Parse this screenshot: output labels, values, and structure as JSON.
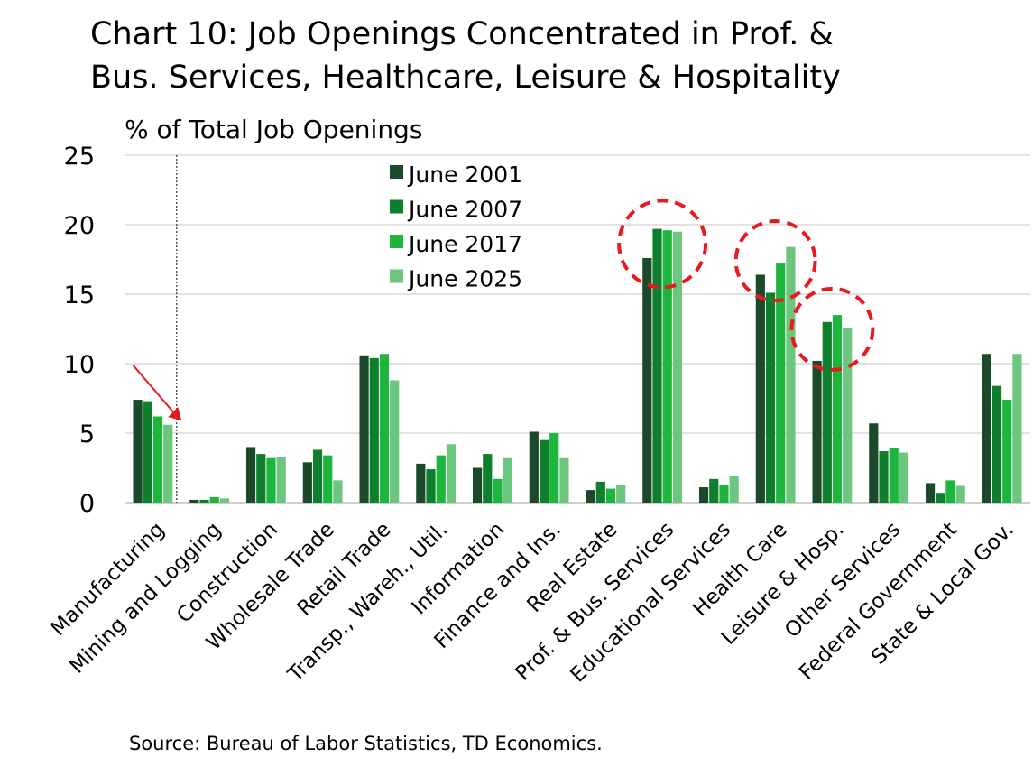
{
  "title_lines": [
    "Chart 10: Job Openings Concentrated in Prof. &",
    "Bus. Services, Healthcare, Leisure & Hospitality"
  ],
  "source": "Source: Bureau of Labor Statistics, TD Economics.",
  "chart_data": {
    "type": "bar",
    "ylabel": "% of Total Job Openings",
    "ylim": [
      0,
      25
    ],
    "yticks": [
      0,
      5,
      10,
      15,
      20,
      25
    ],
    "grid": true,
    "legend_position": "top-center",
    "categories": [
      "Manufacturing",
      "Mining and Logging",
      "Construction",
      "Wholesale Trade",
      "Retail Trade",
      "Transp., Wareh., Util.",
      "Information",
      "Finance and Ins.",
      "Real Estate",
      "Prof. & Bus. Services",
      "Educational Services",
      "Health Care",
      "Leisure & Hosp.",
      "Other Services",
      "Federal Government",
      "State & Local Gov."
    ],
    "series": [
      {
        "name": "June 2001",
        "color": "#1b4a2a",
        "values": [
          7.4,
          0.2,
          4.0,
          2.9,
          10.6,
          2.8,
          2.5,
          5.1,
          0.9,
          17.6,
          1.1,
          16.4,
          10.2,
          5.7,
          1.4,
          10.7
        ]
      },
      {
        "name": "June 2007",
        "color": "#0e7f2b",
        "values": [
          7.3,
          0.2,
          3.5,
          3.8,
          10.4,
          2.4,
          3.5,
          4.5,
          1.5,
          19.7,
          1.7,
          15.1,
          13.0,
          3.7,
          0.7,
          8.4
        ]
      },
      {
        "name": "June 2017",
        "color": "#1cb53d",
        "values": [
          6.2,
          0.4,
          3.2,
          3.4,
          10.7,
          3.4,
          1.7,
          5.0,
          1.0,
          19.6,
          1.3,
          17.2,
          13.5,
          3.9,
          1.6,
          7.4
        ]
      },
      {
        "name": "June 2025",
        "color": "#6cc67e",
        "values": [
          5.6,
          0.3,
          3.3,
          1.6,
          8.8,
          4.2,
          3.2,
          3.2,
          1.3,
          19.5,
          1.9,
          18.4,
          12.6,
          3.6,
          1.2,
          10.7
        ]
      }
    ],
    "highlighted_categories": [
      "Prof. & Bus. Services",
      "Health Care",
      "Leisure & Hosp."
    ],
    "annotation_arrow_category": "Manufacturing",
    "divider_after_category": "Manufacturing",
    "annotation_color": "#e8191f",
    "grid_color": "#d9d9d9"
  }
}
